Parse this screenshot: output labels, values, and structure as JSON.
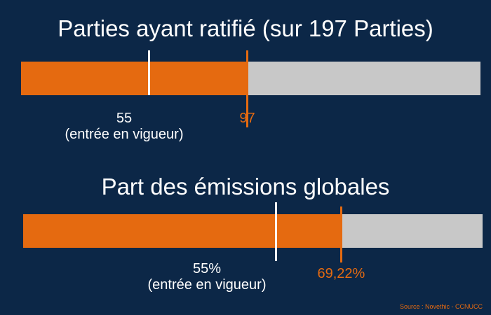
{
  "chart_data": [
    {
      "type": "bar",
      "title": "Parties ayant ratifié (sur 197 Parties)",
      "max": 197,
      "value": 97,
      "value_label": "97",
      "threshold": 55,
      "threshold_label": "55",
      "threshold_caption": "(entrée en vigueur)",
      "colors": {
        "fill": "#e56a10",
        "track": "#c8c8c8",
        "threshold": "#ffffff"
      }
    },
    {
      "type": "bar",
      "title": "Part des émissions globales",
      "max": 100,
      "value": 69.22,
      "value_label": "69,22%",
      "threshold": 55,
      "threshold_label": "55%",
      "threshold_caption": "(entrée en vigueur)",
      "colors": {
        "fill": "#e56a10",
        "track": "#c8c8c8",
        "threshold": "#ffffff"
      }
    }
  ],
  "source": "Source : Novethic - CCNUCC",
  "colors": {
    "background": "#0c2747",
    "accent": "#e56a10"
  }
}
